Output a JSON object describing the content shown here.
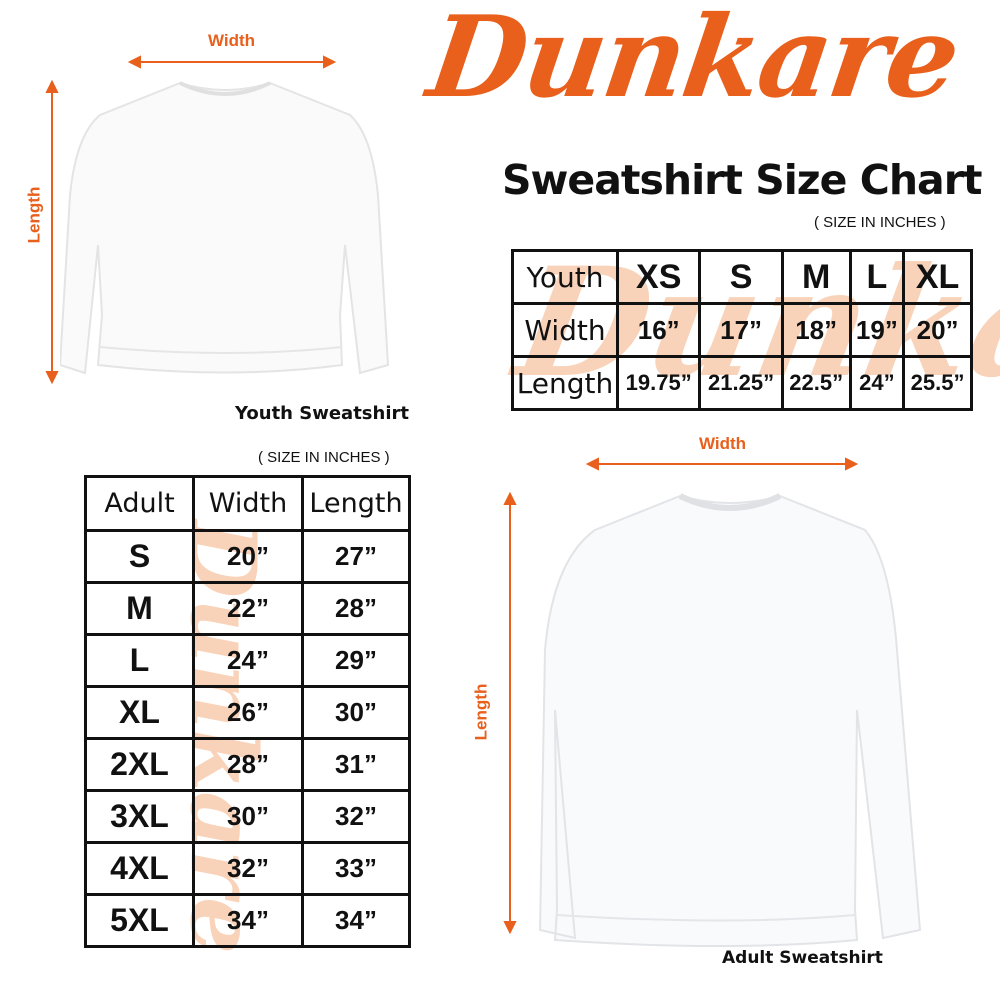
{
  "brand": {
    "logo_text": "Dunkare",
    "accent_color": "#e8601c"
  },
  "title": "Sweatshirt Size Chart",
  "youth": {
    "note": "( SIZE IN INCHES )",
    "caption": "Youth Sweatshirt",
    "width_label": "Width",
    "length_label": "Length",
    "table": {
      "header": [
        "Youth",
        "XS",
        "S",
        "M",
        "L",
        "XL"
      ],
      "rows": [
        [
          "Width",
          "16”",
          "17”",
          "18”",
          "19”",
          "20”"
        ],
        [
          "Length",
          "19.75”",
          "21.25”",
          "22.5”",
          "24”",
          "25.5”"
        ]
      ]
    }
  },
  "adult": {
    "note": "( SIZE IN INCHES )",
    "caption": "Adult Sweatshirt",
    "width_label": "Width",
    "length_label": "Length",
    "table": {
      "header": [
        "Adult",
        "Width",
        "Length"
      ],
      "rows": [
        [
          "S",
          "20”",
          "27”"
        ],
        [
          "M",
          "22”",
          "28”"
        ],
        [
          "L",
          "24”",
          "29”"
        ],
        [
          "XL",
          "26”",
          "30”"
        ],
        [
          "2XL",
          "28”",
          "31”"
        ],
        [
          "3XL",
          "30”",
          "32”"
        ],
        [
          "4XL",
          "32”",
          "33”"
        ],
        [
          "5XL",
          "34”",
          "34”"
        ]
      ]
    }
  }
}
